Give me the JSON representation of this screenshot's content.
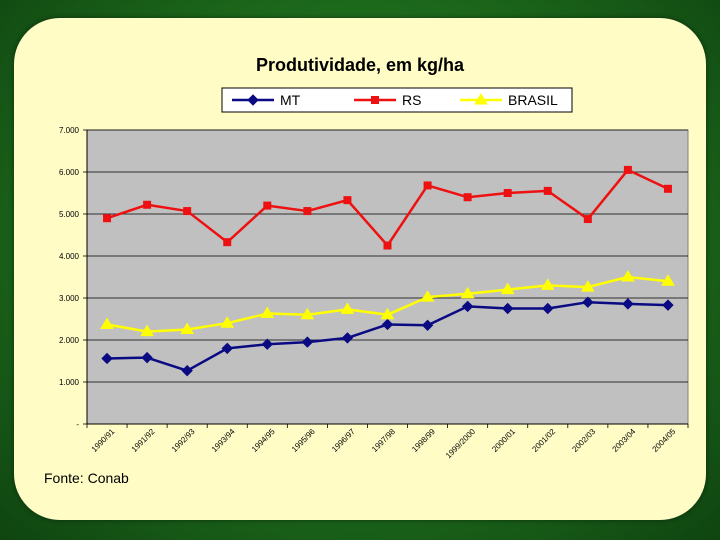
{
  "chart_data": {
    "type": "line",
    "title": "Produtividade, em kg/ha",
    "xlabel": "",
    "ylabel": "",
    "categories": [
      "1990/91",
      "1991/92",
      "1992/93",
      "1993/94",
      "1994/95",
      "1995/96",
      "1996/97",
      "1997/98",
      "1998/99",
      "1999/2000",
      "2000/01",
      "2001/02",
      "2002/03",
      "2003/04",
      "2004/05"
    ],
    "ytick_labels": [
      "-",
      "1.000",
      "2.000",
      "3.000",
      "4.000",
      "5.000",
      "6.000",
      "7.000"
    ],
    "ylim": [
      0,
      7000
    ],
    "grid": true,
    "legend_position": "top",
    "series": [
      {
        "name": "MT",
        "color": "#0a0a82",
        "marker": "diamond",
        "values": [
          1560,
          1580,
          1270,
          1800,
          1900,
          1950,
          2050,
          2370,
          2350,
          2800,
          2750,
          2750,
          2900,
          2860,
          2830
        ]
      },
      {
        "name": "RS",
        "color": "#ee1111",
        "marker": "square",
        "values": [
          4900,
          5220,
          5070,
          4330,
          5200,
          5070,
          5330,
          4250,
          5680,
          5400,
          5500,
          5550,
          4880,
          6050,
          5600
        ]
      },
      {
        "name": "BRASIL",
        "color": "#ffff00",
        "marker": "triangle",
        "values": [
          2370,
          2200,
          2250,
          2400,
          2630,
          2600,
          2730,
          2600,
          3020,
          3100,
          3200,
          3300,
          3260,
          3500,
          3400
        ]
      }
    ]
  },
  "source_note": "Fonte: Conab",
  "colors": {
    "plot_background": "#c0c0c0",
    "card_background": "#fffcc6",
    "page_background": "#1d6a1c"
  }
}
